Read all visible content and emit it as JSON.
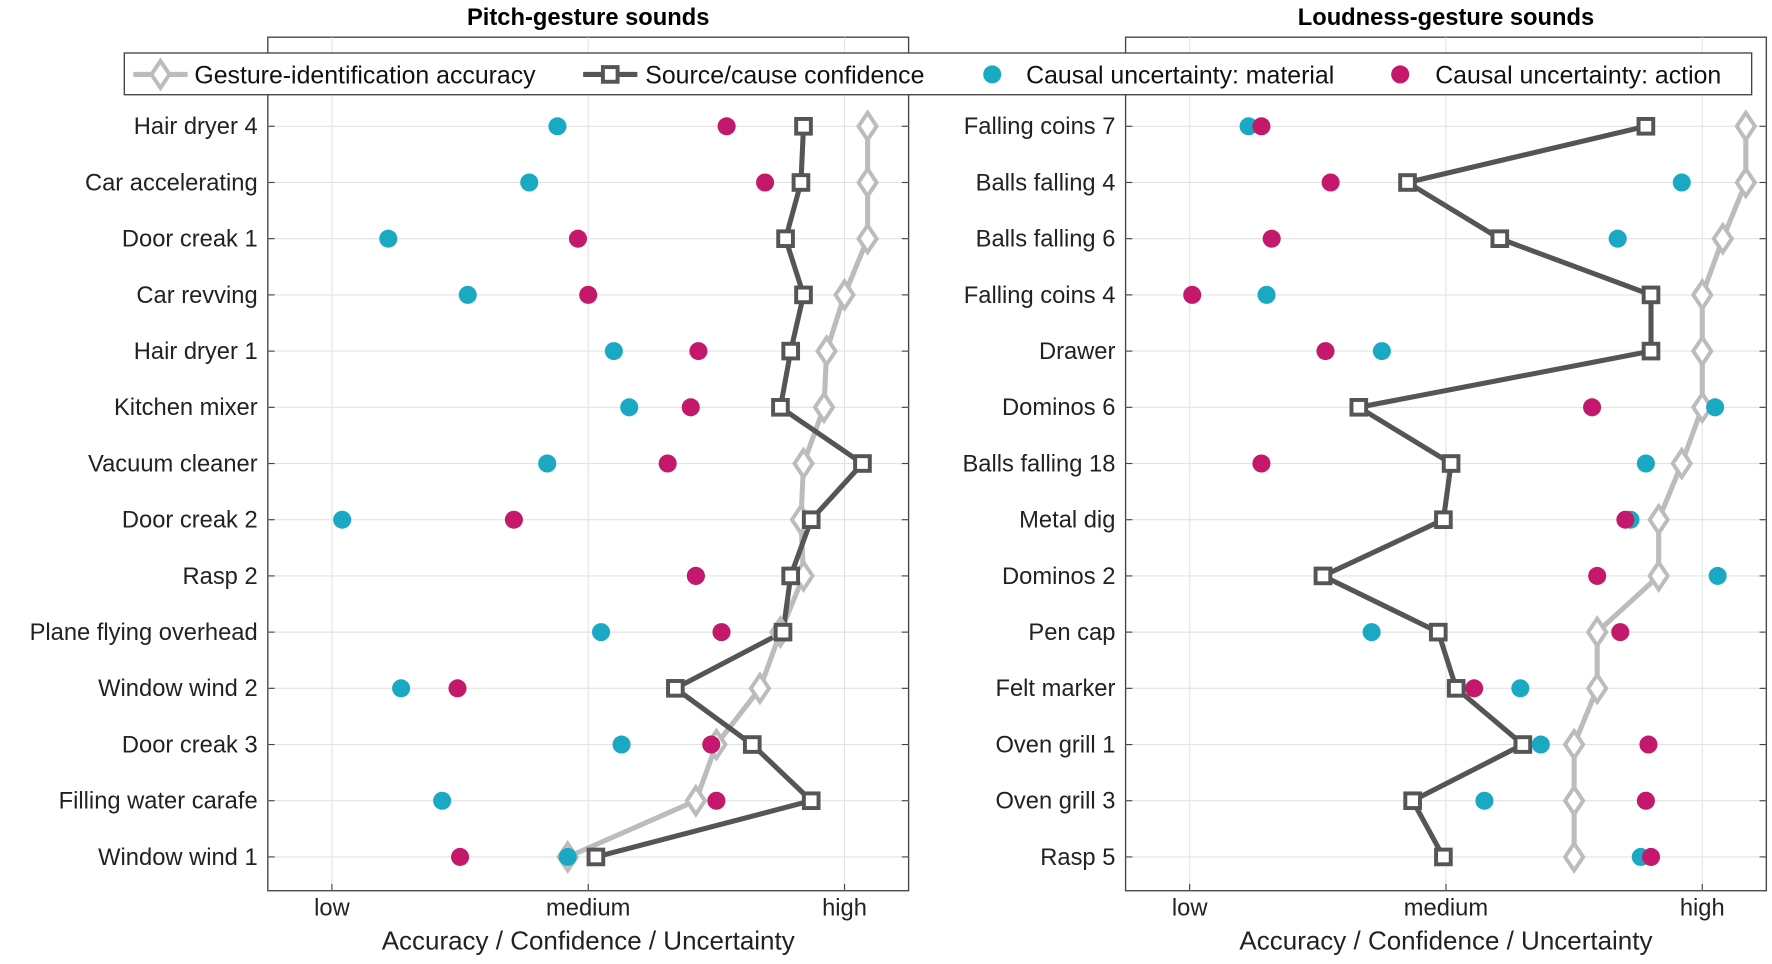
{
  "chart_data": [
    {
      "type": "line",
      "title": "Pitch-gesture sounds",
      "xlabel": "Accuracy / Confidence / Uncertainty",
      "ylabel": "",
      "xticks": [
        0,
        1,
        2
      ],
      "xtick_labels": [
        "low",
        "medium",
        "high"
      ],
      "xlim": [
        -0.25,
        2.25
      ],
      "grid": true,
      "categories": [
        "Hair dryer 4",
        "Car accelerating",
        "Door creak 1",
        "Car revving",
        "Hair dryer 1",
        "Kitchen mixer",
        "Vacuum cleaner",
        "Door creak 2",
        "Rasp 2",
        "Plane flying overhead",
        "Window wind 2",
        "Door creak 3",
        "Filling water carafe",
        "Window wind 1"
      ],
      "series": [
        {
          "name": "Gesture-identification accuracy",
          "values": [
            2.09,
            2.09,
            2.09,
            2.0,
            1.93,
            1.92,
            1.84,
            1.83,
            1.84,
            1.75,
            1.67,
            1.5,
            1.42,
            0.92
          ]
        },
        {
          "name": "Source/cause confidence",
          "values": [
            1.84,
            1.83,
            1.77,
            1.84,
            1.79,
            1.75,
            2.07,
            1.87,
            1.79,
            1.76,
            1.34,
            1.64,
            1.87,
            1.03
          ]
        },
        {
          "name": "Causal uncertainty: material",
          "values": [
            0.88,
            0.77,
            0.22,
            0.53,
            1.1,
            1.16,
            0.84,
            0.04,
            1.42,
            1.05,
            0.27,
            1.13,
            0.43,
            0.92
          ]
        },
        {
          "name": "Causal uncertainty: action",
          "values": [
            1.54,
            1.69,
            0.96,
            1.0,
            1.43,
            1.4,
            1.31,
            0.71,
            1.42,
            1.52,
            0.49,
            1.48,
            1.5,
            0.5
          ]
        }
      ]
    },
    {
      "type": "line",
      "title": "Loudness-gesture sounds",
      "xlabel": "Accuracy / Confidence / Uncertainty",
      "ylabel": "",
      "xticks": [
        0,
        1,
        2
      ],
      "xtick_labels": [
        "low",
        "medium",
        "high"
      ],
      "xlim": [
        -0.25,
        2.25
      ],
      "grid": true,
      "categories": [
        "Falling coins 7",
        "Balls falling 4",
        "Balls falling 6",
        "Falling coins 4",
        "Drawer",
        "Dominos 6",
        "Balls falling 18",
        "Metal dig",
        "Dominos 2",
        "Pen cap",
        "Felt marker",
        "Oven grill 1",
        "Oven grill 3",
        "Rasp 5"
      ],
      "series": [
        {
          "name": "Gesture-identification accuracy",
          "values": [
            2.17,
            2.17,
            2.08,
            2.0,
            2.0,
            2.0,
            1.92,
            1.83,
            1.83,
            1.59,
            1.59,
            1.5,
            1.5,
            1.5
          ]
        },
        {
          "name": "Source/cause confidence",
          "values": [
            1.78,
            0.85,
            1.21,
            1.8,
            1.8,
            0.66,
            1.02,
            0.99,
            0.52,
            0.97,
            1.04,
            1.3,
            0.87,
            0.99
          ]
        },
        {
          "name": "Causal uncertainty: material",
          "values": [
            0.23,
            1.92,
            1.67,
            0.3,
            0.75,
            2.05,
            1.78,
            1.72,
            2.06,
            0.71,
            1.29,
            1.37,
            1.15,
            1.76
          ]
        },
        {
          "name": "Causal uncertainty: action",
          "values": [
            0.28,
            0.55,
            0.32,
            0.01,
            0.53,
            1.57,
            0.28,
            1.7,
            1.59,
            1.68,
            1.11,
            1.79,
            1.78,
            1.8
          ]
        }
      ]
    }
  ],
  "legend": {
    "placement": "top",
    "entries": [
      "Gesture-identification accuracy",
      "Source/cause confidence",
      "Causal uncertainty: material",
      "Causal uncertainty: action"
    ]
  },
  "colors": {
    "accuracy": "#bcbcbc",
    "confidence": "#555555",
    "material": "#1aa9c2",
    "action": "#c4186c"
  }
}
